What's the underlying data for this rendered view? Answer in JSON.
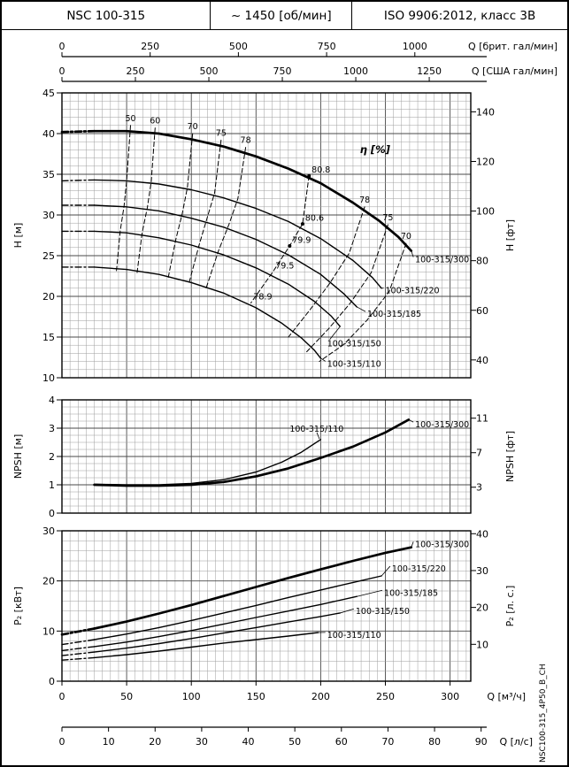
{
  "header": {
    "model": "NSC 100-315",
    "speed": "~ 1450 [об/мин]",
    "standard": "ISO 9906:2012, класс 3В"
  },
  "side_label": "NSC100-315_4P50_B_CH",
  "colors": {
    "curve": "#000000",
    "grid_minor": "#9e9e9e",
    "grid_major": "#4a4a4a",
    "frame": "#000000"
  },
  "x_axes": {
    "top": [
      {
        "label": "Q [брит. гал/мин]",
        "ticks": [
          0,
          250,
          500,
          750,
          1000
        ],
        "to_m3h": 0.27276
      },
      {
        "label": "Q [США гал/мин]",
        "ticks": [
          0,
          250,
          500,
          750,
          1000,
          1250
        ],
        "to_m3h": 0.22712
      }
    ],
    "bottom": [
      {
        "label": "Q [м³/ч]",
        "ticks": [
          0,
          50,
          100,
          150,
          200,
          250,
          300
        ],
        "to_m3h": 1
      },
      {
        "label": "Q [л/с]",
        "ticks": [
          0,
          10,
          20,
          30,
          40,
          50,
          60,
          70,
          80,
          90
        ],
        "to_m3h": 3.6
      }
    ]
  },
  "chart_data": [
    {
      "id": "head",
      "type": "line",
      "ylabel_left": "H [м]",
      "ylabel_right": "H [фт]",
      "ylim": [
        10,
        45
      ],
      "y_ticks_left": [
        10,
        15,
        20,
        25,
        30,
        35,
        40,
        45
      ],
      "y_ticks_right": [
        40,
        60,
        80,
        100,
        120,
        140
      ],
      "right_unit_to_left": 0.3048,
      "eta_label": "η [%]",
      "series": [
        {
          "name": "100-315/300",
          "thick": true,
          "dash_start": true,
          "label_q": 273,
          "label_y": 24.5,
          "points": [
            [
              0,
              40.2
            ],
            [
              25,
              40.3
            ],
            [
              50,
              40.3
            ],
            [
              75,
              40.0
            ],
            [
              100,
              39.3
            ],
            [
              125,
              38.4
            ],
            [
              150,
              37.2
            ],
            [
              175,
              35.7
            ],
            [
              200,
              33.9
            ],
            [
              225,
              31.5
            ],
            [
              245,
              29.3
            ],
            [
              260,
              27.3
            ],
            [
              270,
              25.6
            ]
          ]
        },
        {
          "name": "100-315/220",
          "dash_start": true,
          "label_q": 250,
          "label_y": 20.7,
          "points": [
            [
              0,
              34.2
            ],
            [
              25,
              34.3
            ],
            [
              50,
              34.2
            ],
            [
              75,
              33.8
            ],
            [
              100,
              33.1
            ],
            [
              125,
              32.1
            ],
            [
              150,
              30.8
            ],
            [
              175,
              29.2
            ],
            [
              200,
              27.1
            ],
            [
              225,
              24.4
            ],
            [
              240,
              22.3
            ],
            [
              247,
              21.0
            ]
          ]
        },
        {
          "name": "100-315/185",
          "dash_start": true,
          "label_q": 236,
          "label_y": 17.8,
          "points": [
            [
              0,
              31.2
            ],
            [
              25,
              31.2
            ],
            [
              50,
              31.0
            ],
            [
              75,
              30.5
            ],
            [
              100,
              29.6
            ],
            [
              125,
              28.5
            ],
            [
              150,
              27.0
            ],
            [
              175,
              25.1
            ],
            [
              200,
              22.7
            ],
            [
              218,
              20.3
            ],
            [
              228,
              18.7
            ]
          ]
        },
        {
          "name": "100-315/150",
          "dash_start": true,
          "label_q": 205,
          "label_y": 14.2,
          "leader": [
            [
              215,
              16.3
            ],
            [
              207,
              14.7
            ]
          ],
          "points": [
            [
              0,
              28.0
            ],
            [
              25,
              28.0
            ],
            [
              50,
              27.8
            ],
            [
              75,
              27.2
            ],
            [
              100,
              26.3
            ],
            [
              125,
              25.1
            ],
            [
              150,
              23.5
            ],
            [
              175,
              21.5
            ],
            [
              195,
              19.4
            ],
            [
              208,
              17.6
            ],
            [
              215,
              16.3
            ]
          ]
        },
        {
          "name": "100-315/110",
          "dash_start": true,
          "label_q": 205,
          "label_y": 11.7,
          "points": [
            [
              0,
              23.6
            ],
            [
              25,
              23.6
            ],
            [
              50,
              23.3
            ],
            [
              75,
              22.7
            ],
            [
              100,
              21.7
            ],
            [
              125,
              20.4
            ],
            [
              150,
              18.6
            ],
            [
              170,
              16.7
            ],
            [
              185,
              14.9
            ],
            [
              195,
              13.4
            ],
            [
              200,
              12.4
            ]
          ]
        }
      ],
      "efficiency_contours": [
        {
          "label": "50",
          "points": [
            [
              53,
              41.0
            ],
            [
              50,
              34.2
            ],
            [
              48,
              31.1
            ],
            [
              45,
              28.0
            ],
            [
              42,
              22.9
            ]
          ]
        },
        {
          "label": "60",
          "points": [
            [
              72,
              40.7
            ],
            [
              69,
              34.1
            ],
            [
              66,
              30.9
            ],
            [
              62,
              27.8
            ],
            [
              58,
              22.8
            ]
          ]
        },
        {
          "label": "70",
          "points": [
            [
              101,
              40.0
            ],
            [
              97,
              33.4
            ],
            [
              93,
              30.2
            ],
            [
              88,
              27.0
            ],
            [
              82,
              22.2
            ]
          ]
        },
        {
          "label": "75",
          "points": [
            [
              123,
              39.2
            ],
            [
              118,
              32.7
            ],
            [
              112,
              29.5
            ],
            [
              106,
              26.3
            ],
            [
              98,
              21.5
            ]
          ]
        },
        {
          "label": "78",
          "points": [
            [
              142,
              38.3
            ],
            [
              136,
              32.0
            ],
            [
              129,
              28.8
            ],
            [
              121,
              25.6
            ],
            [
              111,
              20.8
            ]
          ]
        }
      ],
      "efficiency_contours_right": [
        {
          "label": "78",
          "points": [
            [
              234,
              31.0
            ],
            [
              222,
              25.3
            ],
            [
              207,
              21.6
            ],
            [
              192,
              18.4
            ],
            [
              175,
              15.0
            ]
          ]
        },
        {
          "label": "75",
          "points": [
            [
              252,
              28.8
            ],
            [
              239,
              22.9
            ],
            [
              223,
              19.2
            ],
            [
              206,
              16.0
            ],
            [
              188,
              13.0
            ]
          ]
        },
        {
          "label": "70",
          "points": [
            [
              266,
              26.5
            ],
            [
              253,
              20.6
            ],
            [
              236,
              17.1
            ],
            [
              218,
              14.1
            ],
            [
              199,
              12.0
            ]
          ]
        }
      ],
      "bep_line": {
        "points": [
          [
            191,
            34.8
          ],
          [
            186,
            28.9
          ],
          [
            176,
            26.2
          ],
          [
            163,
            23.0
          ],
          [
            146,
            19.2
          ]
        ],
        "labels": [
          {
            "text": "80.8",
            "q": 193,
            "y": 35.2
          },
          {
            "text": "80.6",
            "q": 188,
            "y": 29.3
          },
          {
            "text": "79.9",
            "q": 178,
            "y": 26.6
          },
          {
            "text": "79.5",
            "q": 165,
            "y": 23.4
          },
          {
            "text": "78.9",
            "q": 148,
            "y": 19.6
          }
        ]
      }
    },
    {
      "id": "npsh",
      "type": "line",
      "ylabel_left": "NPSH [м]",
      "ylabel_right": "NPSH [фт]",
      "ylim": [
        0,
        4
      ],
      "y_ticks_left": [
        0,
        1,
        2,
        3,
        4
      ],
      "y_ticks_right": [
        3,
        7,
        11
      ],
      "right_unit_to_left": 0.3048,
      "series": [
        {
          "name": "100-315/110",
          "label_q": 176,
          "label_y": 2.97,
          "leader": [
            [
              199,
              2.62
            ],
            [
              197,
              2.85
            ]
          ],
          "points": [
            [
              25,
              1.02
            ],
            [
              50,
              1.0
            ],
            [
              75,
              1.0
            ],
            [
              100,
              1.05
            ],
            [
              125,
              1.18
            ],
            [
              150,
              1.45
            ],
            [
              170,
              1.8
            ],
            [
              185,
              2.15
            ],
            [
              200,
              2.6
            ]
          ]
        },
        {
          "name": "100-315/300",
          "thick": true,
          "label_q": 273,
          "label_y": 3.12,
          "points": [
            [
              25,
              1.0
            ],
            [
              50,
              0.97
            ],
            [
              75,
              0.97
            ],
            [
              100,
              1.0
            ],
            [
              125,
              1.1
            ],
            [
              150,
              1.3
            ],
            [
              175,
              1.58
            ],
            [
              200,
              1.95
            ],
            [
              225,
              2.35
            ],
            [
              250,
              2.85
            ],
            [
              268,
              3.3
            ]
          ]
        }
      ]
    },
    {
      "id": "power",
      "type": "line",
      "ylabel_left": "P₂ [кВт]",
      "ylabel_right": "P₂ [л. с.]",
      "ylim": [
        0,
        30
      ],
      "y_ticks_left": [
        0,
        10,
        20,
        30
      ],
      "y_ticks_right": [
        10,
        20,
        30,
        40
      ],
      "right_unit_to_left": 0.7355,
      "series": [
        {
          "name": "100-315/300",
          "thick": true,
          "dash_start": true,
          "label_q": 273,
          "label_y": 27.3,
          "points": [
            [
              0,
              9.3
            ],
            [
              25,
              10.5
            ],
            [
              50,
              11.9
            ],
            [
              75,
              13.5
            ],
            [
              100,
              15.2
            ],
            [
              125,
              17.0
            ],
            [
              150,
              18.8
            ],
            [
              175,
              20.6
            ],
            [
              200,
              22.3
            ],
            [
              225,
              24.0
            ],
            [
              250,
              25.6
            ],
            [
              270,
              26.7
            ]
          ]
        },
        {
          "name": "100-315/220",
          "dash_start": true,
          "label_q": 255,
          "label_y": 22.4,
          "points": [
            [
              0,
              7.3
            ],
            [
              25,
              8.3
            ],
            [
              50,
              9.4
            ],
            [
              75,
              10.7
            ],
            [
              100,
              12.1
            ],
            [
              125,
              13.6
            ],
            [
              150,
              15.1
            ],
            [
              175,
              16.7
            ],
            [
              200,
              18.2
            ],
            [
              225,
              19.7
            ],
            [
              247,
              21.0
            ]
          ]
        },
        {
          "name": "100-315/185",
          "dash_start": true,
          "label_q": 249,
          "label_y": 17.6,
          "points": [
            [
              0,
              6.1
            ],
            [
              25,
              6.9
            ],
            [
              50,
              7.8
            ],
            [
              75,
              8.9
            ],
            [
              100,
              10.1
            ],
            [
              125,
              11.4
            ],
            [
              150,
              12.7
            ],
            [
              175,
              14.0
            ],
            [
              200,
              15.3
            ],
            [
              228,
              16.9
            ]
          ]
        },
        {
          "name": "100-315/150",
          "dash_start": true,
          "label_q": 227,
          "label_y": 13.9,
          "points": [
            [
              0,
              5.1
            ],
            [
              25,
              5.8
            ],
            [
              50,
              6.6
            ],
            [
              75,
              7.5
            ],
            [
              100,
              8.5
            ],
            [
              125,
              9.6
            ],
            [
              150,
              10.7
            ],
            [
              175,
              11.8
            ],
            [
              200,
              12.9
            ],
            [
              215,
              13.6
            ]
          ]
        },
        {
          "name": "100-315/110",
          "dash_start": true,
          "label_q": 205,
          "label_y": 9.2,
          "points": [
            [
              0,
              4.2
            ],
            [
              25,
              4.7
            ],
            [
              50,
              5.3
            ],
            [
              75,
              6.0
            ],
            [
              100,
              6.8
            ],
            [
              125,
              7.6
            ],
            [
              150,
              8.3
            ],
            [
              175,
              9.0
            ],
            [
              198,
              9.7
            ]
          ]
        }
      ]
    }
  ]
}
